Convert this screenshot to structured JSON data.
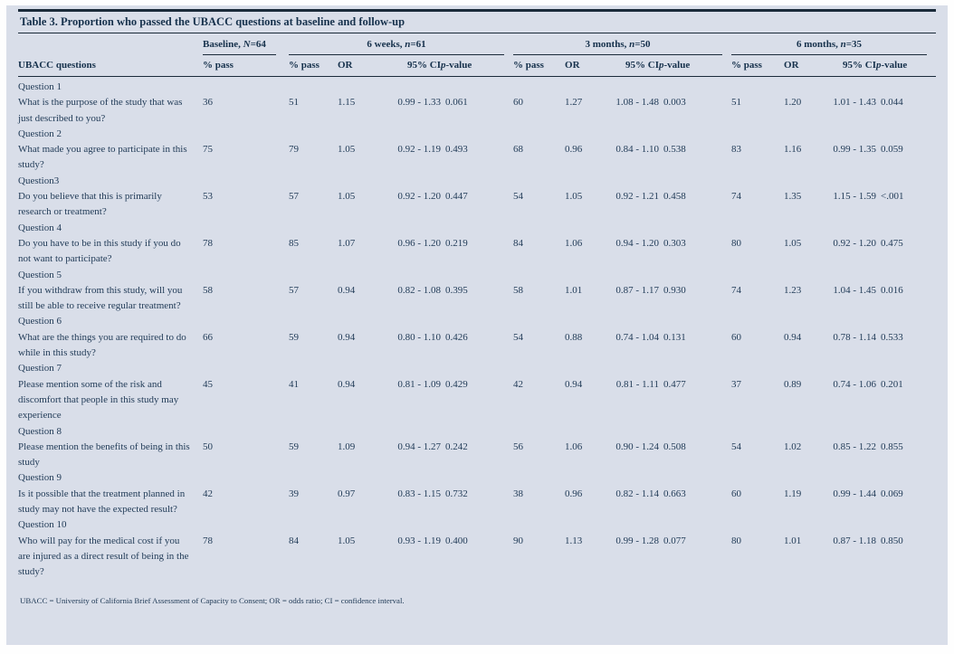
{
  "colors": {
    "panel_bg": "#d9dee9",
    "text": "#223c58",
    "heading_text": "#16314c",
    "rule": "#1b2b3a"
  },
  "table": {
    "title": "Table 3. Proportion who passed the UBACC questions at baseline and follow-up",
    "groups": [
      {
        "pre": "Baseline, ",
        "var": "N",
        "post": "=64"
      },
      {
        "pre": "6 weeks, ",
        "var": "n",
        "post": "=61"
      },
      {
        "pre": "3 months, ",
        "var": "n",
        "post": "=50"
      },
      {
        "pre": "6 months, ",
        "var": "n",
        "post": "=35"
      }
    ],
    "col_headers": {
      "question": "UBACC questions",
      "pass": "% pass",
      "or": "OR",
      "ci": "95% CI",
      "pvar": "p",
      "ppost": "-value"
    },
    "rows": [
      {
        "label": "Question 1",
        "question": "What is the purpose of the study that was just described to you?",
        "baseline": "36",
        "followups": [
          [
            "51",
            "1.15",
            "0.99 - 1.33",
            "0.061"
          ],
          [
            "60",
            "1.27",
            "1.08 - 1.48",
            "0.003"
          ],
          [
            "51",
            "1.20",
            "1.01 - 1.43",
            "0.044"
          ]
        ]
      },
      {
        "label": "Question 2",
        "question": "What made you agree to participate in this study?",
        "baseline": "75",
        "followups": [
          [
            "79",
            "1.05",
            "0.92 - 1.19",
            "0.493"
          ],
          [
            "68",
            "0.96",
            "0.84 - 1.10",
            "0.538"
          ],
          [
            "83",
            "1.16",
            "0.99 - 1.35",
            "0.059"
          ]
        ]
      },
      {
        "label": "Question3",
        "question": "Do you believe that this is primarily research or treatment?",
        "baseline": "53",
        "followups": [
          [
            "57",
            "1.05",
            "0.92 - 1.20",
            "0.447"
          ],
          [
            "54",
            "1.05",
            "0.92 - 1.21",
            "0.458"
          ],
          [
            "74",
            "1.35",
            "1.15 - 1.59",
            "<.001"
          ]
        ]
      },
      {
        "label": "Question 4",
        "question": "Do you have to be in this study if you do not want to participate?",
        "baseline": "78",
        "followups": [
          [
            "85",
            "1.07",
            "0.96 - 1.20",
            "0.219"
          ],
          [
            "84",
            "1.06",
            "0.94 - 1.20",
            "0.303"
          ],
          [
            "80",
            "1.05",
            "0.92 - 1.20",
            "0.475"
          ]
        ]
      },
      {
        "label": "Question 5",
        "question": "If you withdraw from this study, will you still be able to receive regular treatment?",
        "baseline": "58",
        "followups": [
          [
            "57",
            "0.94",
            "0.82 - 1.08",
            "0.395"
          ],
          [
            "58",
            "1.01",
            "0.87 - 1.17",
            "0.930"
          ],
          [
            "74",
            "1.23",
            "1.04 - 1.45",
            "0.016"
          ]
        ]
      },
      {
        "label": "Question 6",
        "question": "What are the things you are required to do while in this study?",
        "baseline": "66",
        "followups": [
          [
            "59",
            "0.94",
            "0.80 - 1.10",
            "0.426"
          ],
          [
            "54",
            "0.88",
            "0.74 - 1.04",
            "0.131"
          ],
          [
            "60",
            "0.94",
            "0.78 - 1.14",
            "0.533"
          ]
        ]
      },
      {
        "label": "Question 7",
        "question": "Please mention some of the risk and discomfort that people in this study may experience",
        "baseline": "45",
        "followups": [
          [
            "41",
            "0.94",
            "0.81 - 1.09",
            "0.429"
          ],
          [
            "42",
            "0.94",
            "0.81 - 1.11",
            "0.477"
          ],
          [
            "37",
            "0.89",
            "0.74 - 1.06",
            "0.201"
          ]
        ]
      },
      {
        "label": "Question 8",
        "question": "Please mention the benefits of being in this study",
        "baseline": "50",
        "followups": [
          [
            "59",
            "1.09",
            "0.94 - 1.27",
            "0.242"
          ],
          [
            "56",
            "1.06",
            "0.90 - 1.24",
            "0.508"
          ],
          [
            "54",
            "1.02",
            "0.85 - 1.22",
            "0.855"
          ]
        ]
      },
      {
        "label": "Question 9",
        "question": "Is it possible that the treatment planned in study may not have the expected result?",
        "baseline": "42",
        "followups": [
          [
            "39",
            "0.97",
            "0.83 - 1.15",
            "0.732"
          ],
          [
            "38",
            "0.96",
            "0.82 - 1.14",
            "0.663"
          ],
          [
            "60",
            "1.19",
            "0.99 - 1.44",
            "0.069"
          ]
        ]
      },
      {
        "label": "Question 10",
        "question": "Who will pay for the medical cost if you are injured as a direct result of being in the study?",
        "baseline": "78",
        "followups": [
          [
            "84",
            "1.05",
            "0.93 - 1.19",
            "0.400"
          ],
          [
            "90",
            "1.13",
            "0.99 - 1.28",
            "0.077"
          ],
          [
            "80",
            "1.01",
            "0.87 - 1.18",
            "0.850"
          ]
        ]
      }
    ],
    "footnote": "UBACC = University of California Brief Assessment of Capacity to Consent; OR = odds ratio; CI = confidence interval."
  }
}
